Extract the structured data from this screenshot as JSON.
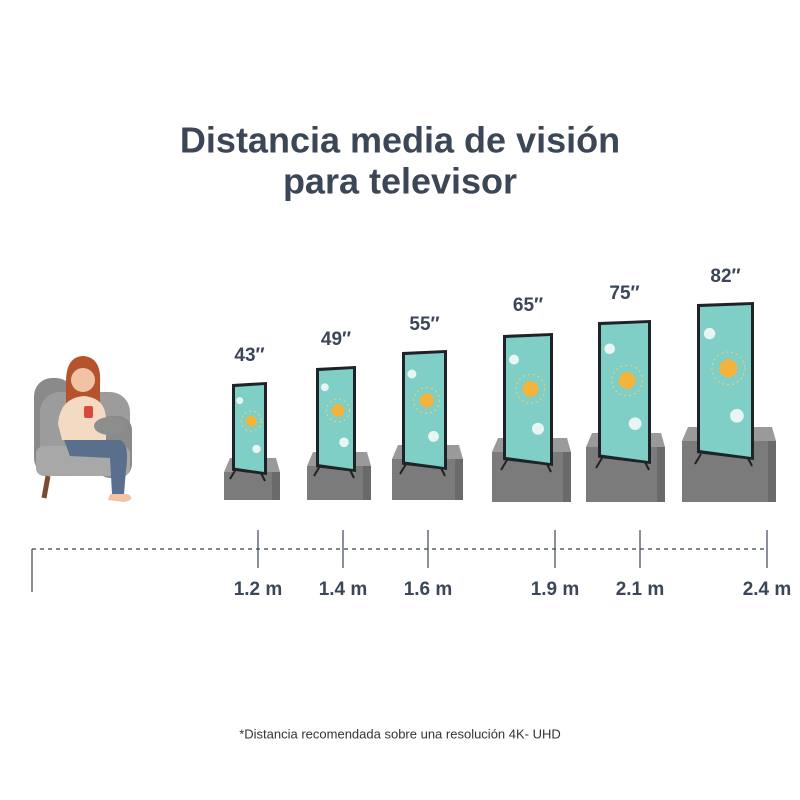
{
  "header": {
    "title_lines": [
      "Distancia media de visión",
      "para televisor"
    ]
  },
  "tvs": [
    {
      "size": "43″",
      "distance": "1.2 m"
    },
    {
      "size": "49″",
      "distance": "1.4 m"
    },
    {
      "size": "55″",
      "distance": "1.6 m"
    },
    {
      "size": "65″",
      "distance": "1.9 m"
    },
    {
      "size": "75″",
      "distance": "2.1 m"
    },
    {
      "size": "82″",
      "distance": "2.4 m"
    }
  ],
  "footnote": "*Distancia recomendada sobre una resolución 4K- UHD"
}
